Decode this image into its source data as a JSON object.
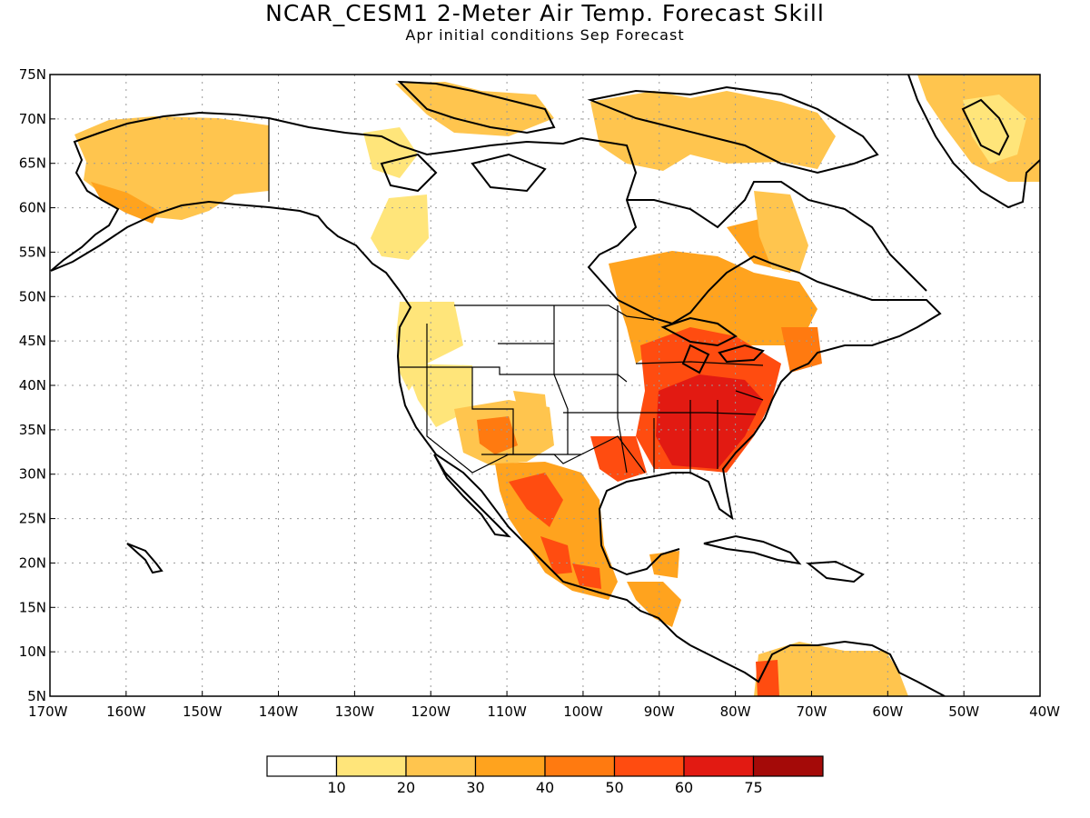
{
  "title": "NCAR_CESM1 2-Meter Air Temp. Forecast Skill",
  "subtitle": "Apr initial conditions  Sep Forecast",
  "map": {
    "lon_range": [
      -170,
      -40
    ],
    "lat_range": [
      5,
      75
    ],
    "grid": true,
    "lat_labels": [
      "75N",
      "70N",
      "65N",
      "60N",
      "55N",
      "50N",
      "45N",
      "40N",
      "35N",
      "30N",
      "25N",
      "20N",
      "15N",
      "10N",
      "5N"
    ],
    "lon_labels": [
      "170W",
      "160W",
      "150W",
      "140W",
      "130W",
      "120W",
      "110W",
      "100W",
      "90W",
      "80W",
      "70W",
      "60W",
      "50W",
      "40W"
    ]
  },
  "colorbar": {
    "labels": [
      "10",
      "20",
      "30",
      "40",
      "50",
      "60",
      "75"
    ],
    "colors": [
      "#ffffff",
      "#ffe57a",
      "#ffc54e",
      "#ffa31e",
      "#ff7a10",
      "#ff4c10",
      "#e21a12",
      "#a40a08"
    ]
  },
  "regions": [
    {
      "name": "alaska",
      "level": 2
    },
    {
      "name": "alaska-south",
      "level": 3
    },
    {
      "name": "canada-arctic-islands",
      "level": 2
    },
    {
      "name": "baffin-region",
      "level": 2
    },
    {
      "name": "greenland-south",
      "level": 2
    },
    {
      "name": "greenland-east",
      "level": 1
    },
    {
      "name": "western-canada",
      "level": 1
    },
    {
      "name": "pacific-northwest",
      "level": 1
    },
    {
      "name": "us-southwest",
      "level": 2
    },
    {
      "name": "arizona-core",
      "level": 4
    },
    {
      "name": "mexico",
      "level": 3
    },
    {
      "name": "mexico-core",
      "level": 5
    },
    {
      "name": "great-lakes",
      "level": 3
    },
    {
      "name": "eastern-us",
      "level": 5
    },
    {
      "name": "southeast-core",
      "level": 6
    },
    {
      "name": "northeast",
      "level": 4
    },
    {
      "name": "quebec-labrador",
      "level": 2
    },
    {
      "name": "central-america",
      "level": 3
    },
    {
      "name": "south-america-north",
      "level": 2
    },
    {
      "name": "colombia-core",
      "level": 5
    }
  ]
}
